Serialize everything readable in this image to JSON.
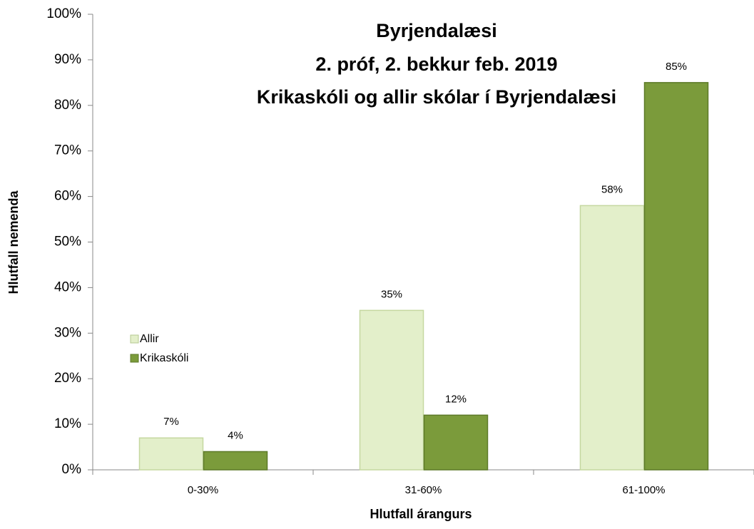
{
  "chart_data": {
    "type": "bar",
    "title": [
      "Byrjendalæsi",
      "2. próf, 2. bekkur feb. 2019",
      "Krikaskóli og allir skólar í Byrjendalæsi"
    ],
    "x_label": "Hlutfall árangurs",
    "y_label": "Hlutfall nemenda",
    "categories": [
      "0-30%",
      "31-60%",
      "61-100%"
    ],
    "series": [
      {
        "name": "Allir",
        "color": "#e3efca",
        "values": [
          7,
          35,
          58
        ],
        "value_labels": [
          "7%",
          "35%",
          "58%"
        ]
      },
      {
        "name": "Krikaskóli",
        "color": "#7b9b3b",
        "values": [
          4,
          12,
          85
        ],
        "value_labels": [
          "4%",
          "12%",
          "85%"
        ]
      }
    ],
    "ylim": [
      0,
      100
    ],
    "yticks": [
      {
        "value": 0,
        "label": "0%"
      },
      {
        "value": 10,
        "label": "10%"
      },
      {
        "value": 20,
        "label": "20%"
      },
      {
        "value": 30,
        "label": "30%"
      },
      {
        "value": 40,
        "label": "40%"
      },
      {
        "value": 50,
        "label": "50%"
      },
      {
        "value": 60,
        "label": "60%"
      },
      {
        "value": 70,
        "label": "70%"
      },
      {
        "value": 80,
        "label": "80%"
      },
      {
        "value": 90,
        "label": "90%"
      },
      {
        "value": 100,
        "label": "100%"
      }
    ],
    "grid": false,
    "legend": "left"
  }
}
